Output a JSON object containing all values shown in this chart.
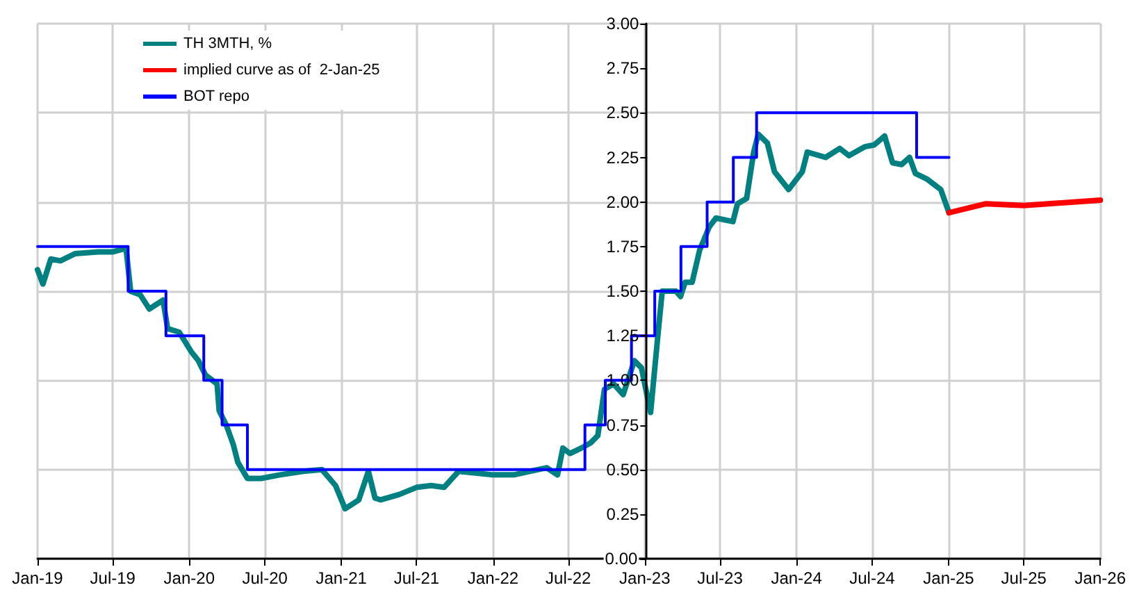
{
  "chart_data": {
    "type": "line",
    "legend": "top left",
    "grid": true,
    "marker": "none",
    "line_style": "solid",
    "xlim": [
      "2019-01",
      "2026-01"
    ],
    "xticks": [
      {
        "value": "2019-01",
        "label": "Jan-19"
      },
      {
        "value": "2019-07",
        "label": "Jul-19"
      },
      {
        "value": "2020-01",
        "label": "Jan-20"
      },
      {
        "value": "2020-07",
        "label": "Jul-20"
      },
      {
        "value": "2021-01",
        "label": "Jan-21"
      },
      {
        "value": "2021-07",
        "label": "Jul-21"
      },
      {
        "value": "2022-01",
        "label": "Jan-22"
      },
      {
        "value": "2022-07",
        "label": "Jul-22"
      },
      {
        "value": "2023-01",
        "label": "Jan-23"
      },
      {
        "value": "2023-07",
        "label": "Jul-23"
      },
      {
        "value": "2024-01",
        "label": "Jan-24"
      },
      {
        "value": "2024-07",
        "label": "Jul-24"
      },
      {
        "value": "2025-01",
        "label": "Jan-25"
      },
      {
        "value": "2025-07",
        "label": "Jul-25"
      },
      {
        "value": "2026-01",
        "label": "Jan-26"
      }
    ],
    "ylim": [
      0,
      3
    ],
    "yticks": [
      {
        "value": 0,
        "label": "0.00"
      },
      {
        "value": 0.25,
        "label": "0.25"
      },
      {
        "value": 0.5,
        "label": "0.50"
      },
      {
        "value": 0.75,
        "label": "0.75"
      },
      {
        "value": 1,
        "label": "1.00"
      },
      {
        "value": 1.25,
        "label": "1.25"
      },
      {
        "value": 1.5,
        "label": "1.50"
      },
      {
        "value": 1.75,
        "label": "1.75"
      },
      {
        "value": 2,
        "label": "2.00"
      },
      {
        "value": 2.25,
        "label": "2.25"
      },
      {
        "value": 2.5,
        "label": "2.50"
      },
      {
        "value": 2.75,
        "label": "2.75"
      },
      {
        "value": 3,
        "label": "3.00"
      }
    ],
    "series": [
      {
        "name": "TH 3MTH, %",
        "color": "#008080",
        "x": [
          "2019-01-01",
          "2019-01-14",
          "2019-02-02",
          "2019-02-25",
          "2019-04-01",
          "2019-05-27",
          "2019-06-30",
          "2019-08-02",
          "2019-08-13",
          "2019-09-05",
          "2019-09-27",
          "2019-10-30",
          "2019-11-10",
          "2019-12-08",
          "2020-01-06",
          "2020-01-23",
          "2020-02-09",
          "2020-03-08",
          "2020-03-13",
          "2020-03-30",
          "2020-04-16",
          "2020-04-27",
          "2020-05-20",
          "2020-06-22",
          "2020-08-06",
          "2020-10-01",
          "2020-11-15",
          "2020-12-18",
          "2021-01-10",
          "2021-02-12",
          "2021-03-07",
          "2021-03-23",
          "2021-04-05",
          "2021-05-20",
          "2021-07-01",
          "2021-08-05",
          "2021-09-05",
          "2021-10-10",
          "2022-01-01",
          "2022-02-20",
          "2022-05-10",
          "2022-06-05",
          "2022-06-18",
          "2022-07-05",
          "2022-08-01",
          "2022-08-24",
          "2022-09-10",
          "2022-09-26",
          "2022-10-18",
          "2022-11-10",
          "2022-12-07",
          "2022-12-24",
          "2023-01-15",
          "2023-02-01",
          "2023-02-12",
          "2023-03-17",
          "2023-03-28",
          "2023-04-08",
          "2023-04-25",
          "2023-05-13",
          "2023-06-05",
          "2023-06-21",
          "2023-08-01",
          "2023-08-12",
          "2023-09-03",
          "2023-09-20",
          "2023-10-01",
          "2023-10-23",
          "2023-11-09",
          "2023-12-13",
          "2024-01-15",
          "2024-01-27",
          "2024-03-11",
          "2024-04-14",
          "2024-05-06",
          "2024-06-14",
          "2024-07-06",
          "2024-07-31",
          "2024-08-19",
          "2024-09-10",
          "2024-09-29",
          "2024-10-13",
          "2024-11-09",
          "2024-12-13",
          "2025-01-02"
        ],
        "values": [
          1.62,
          1.54,
          1.68,
          1.67,
          1.71,
          1.72,
          1.72,
          1.74,
          1.5,
          1.48,
          1.4,
          1.45,
          1.29,
          1.27,
          1.16,
          1.11,
          1.03,
          0.98,
          0.83,
          0.75,
          0.64,
          0.54,
          0.45,
          0.45,
          0.47,
          0.49,
          0.5,
          0.41,
          0.28,
          0.33,
          0.49,
          0.34,
          0.33,
          0.36,
          0.4,
          0.41,
          0.4,
          0.49,
          0.47,
          0.47,
          0.51,
          0.47,
          0.62,
          0.59,
          0.62,
          0.65,
          0.69,
          0.95,
          0.98,
          0.92,
          1.11,
          1.07,
          0.82,
          1.24,
          1.5,
          1.5,
          1.47,
          1.55,
          1.55,
          1.73,
          1.86,
          1.91,
          1.89,
          1.99,
          2.02,
          2.28,
          2.38,
          2.33,
          2.17,
          2.07,
          2.17,
          2.28,
          2.25,
          2.3,
          2.26,
          2.31,
          2.32,
          2.37,
          2.22,
          2.21,
          2.25,
          2.16,
          2.13,
          2.07,
          1.94
        ]
      },
      {
        "name": "implied curve as of  2-Jan-25",
        "color": "#ff0000",
        "x": [
          "2025-01-02",
          "2025-04-01",
          "2025-07-01",
          "2026-01-01"
        ],
        "values": [
          1.94,
          1.99,
          1.98,
          2.01
        ]
      },
      {
        "name": "BOT repo",
        "type": "step",
        "color": "#0000ff",
        "x": [
          "2019-01-01",
          "2019-08-07",
          "2019-11-06",
          "2020-02-05",
          "2020-03-20",
          "2020-05-20",
          "2022-08-10",
          "2022-09-28",
          "2022-11-30",
          "2023-01-25",
          "2023-03-29",
          "2023-05-31",
          "2023-08-02",
          "2023-09-27",
          "2024-10-16",
          "2025-01-02"
        ],
        "values": [
          1.75,
          1.5,
          1.25,
          1.0,
          0.75,
          0.5,
          0.75,
          1.0,
          1.25,
          1.5,
          1.75,
          2.0,
          2.25,
          2.5,
          2.25,
          2.25
        ]
      }
    ]
  }
}
